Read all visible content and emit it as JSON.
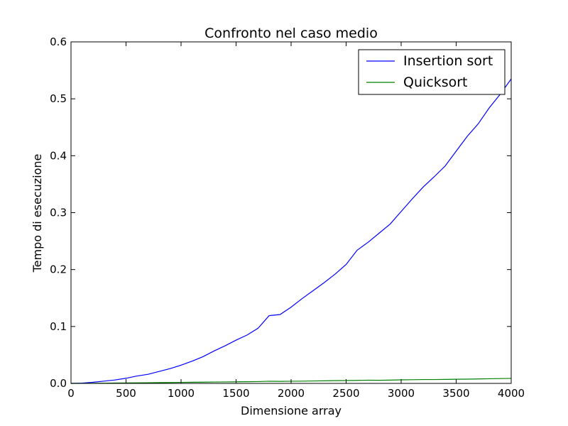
{
  "chart_data": {
    "type": "line",
    "title": "Confronto nel caso medio",
    "xlabel": "Dimensione array",
    "ylabel": "Tempo di esecuzione",
    "xlim": [
      0,
      4000
    ],
    "ylim": [
      0,
      0.6
    ],
    "xticks": [
      0,
      500,
      1000,
      1500,
      2000,
      2500,
      3000,
      3500,
      4000
    ],
    "xtick_labels": [
      "0",
      "500",
      "1000",
      "1500",
      "2000",
      "2500",
      "3000",
      "3500",
      "4000"
    ],
    "yticks": [
      0,
      0.1,
      0.2,
      0.3,
      0.4,
      0.5,
      0.6
    ],
    "ytick_labels": [
      "0.0",
      "0.1",
      "0.2",
      "0.3",
      "0.4",
      "0.5",
      "0.6"
    ],
    "grid": false,
    "legend_position": "top-right",
    "x": [
      0,
      100,
      200,
      300,
      400,
      500,
      600,
      700,
      800,
      900,
      1000,
      1100,
      1200,
      1300,
      1400,
      1500,
      1600,
      1700,
      1800,
      1900,
      2000,
      2100,
      2200,
      2300,
      2400,
      2500,
      2600,
      2700,
      2800,
      2900,
      3000,
      3100,
      3200,
      3300,
      3400,
      3500,
      3600,
      3700,
      3800,
      3900,
      4000
    ],
    "series": [
      {
        "name": "Insertion sort",
        "color": "#0000ff",
        "values": [
          0,
          0.0005,
          0.002,
          0.004,
          0.006,
          0.009,
          0.013,
          0.016,
          0.021,
          0.026,
          0.032,
          0.039,
          0.047,
          0.057,
          0.066,
          0.076,
          0.085,
          0.097,
          0.119,
          0.121,
          0.134,
          0.149,
          0.163,
          0.177,
          0.192,
          0.209,
          0.234,
          0.248,
          0.264,
          0.28,
          0.302,
          0.324,
          0.345,
          0.363,
          0.382,
          0.408,
          0.434,
          0.456,
          0.484,
          0.508,
          0.535
        ]
      },
      {
        "name": "Quicksort",
        "color": "#008000",
        "values": [
          0,
          0.0001,
          0.0002,
          0.0004,
          0.0006,
          0.0008,
          0.001,
          0.0012,
          0.0014,
          0.0016,
          0.0018,
          0.002,
          0.0022,
          0.0024,
          0.0026,
          0.0028,
          0.003,
          0.0032,
          0.0038,
          0.0036,
          0.0038,
          0.004,
          0.0043,
          0.0045,
          0.0048,
          0.005,
          0.0053,
          0.0056,
          0.0055,
          0.0058,
          0.0062,
          0.0065,
          0.0068,
          0.0068,
          0.007,
          0.0073,
          0.0075,
          0.0078,
          0.0082,
          0.0085,
          0.0088
        ]
      }
    ]
  }
}
